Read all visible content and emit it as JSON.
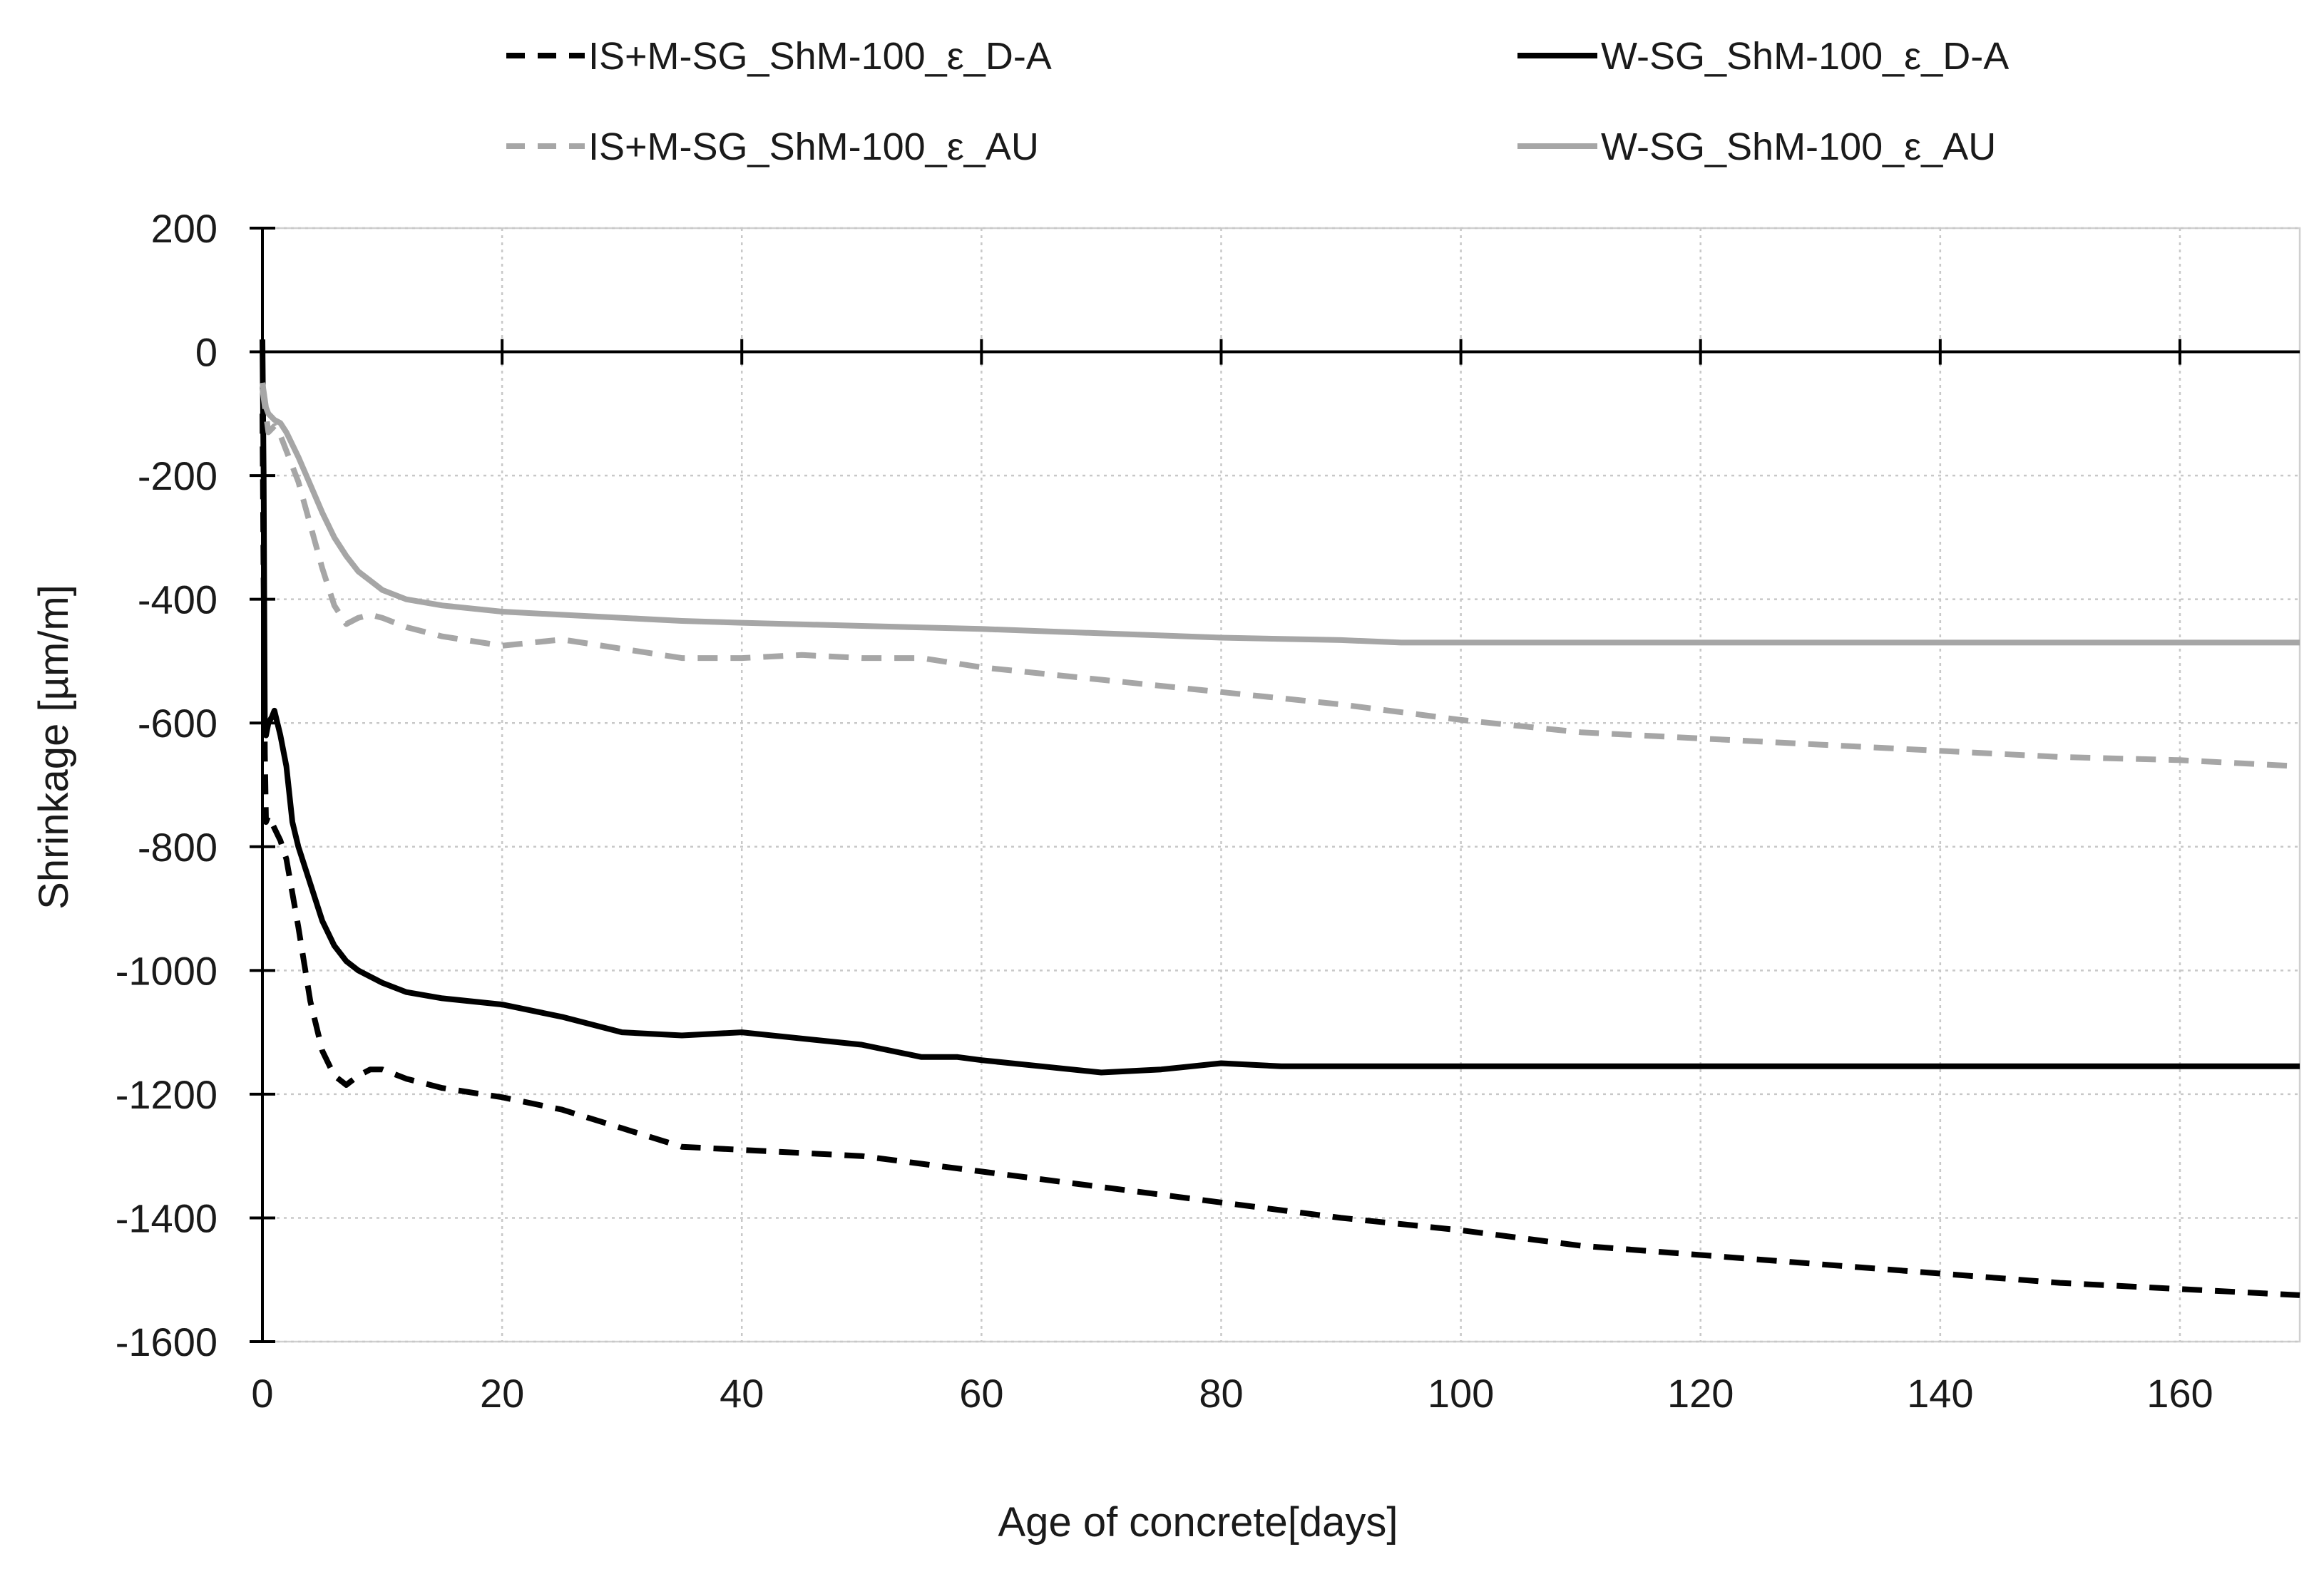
{
  "chart_data": {
    "type": "line",
    "title": "",
    "xlabel": "Age of concrete[days]",
    "ylabel": "Shrinkage [µm/m]",
    "xlim": [
      0,
      170
    ],
    "ylim": [
      -1600,
      200
    ],
    "xticks": [
      0,
      20,
      40,
      60,
      80,
      100,
      120,
      140,
      160
    ],
    "yticks": [
      200,
      0,
      -200,
      -400,
      -600,
      -800,
      -1000,
      -1200,
      -1400,
      -1600
    ],
    "xtick_labels": [
      "0",
      "20",
      "40",
      "60",
      "80",
      "100",
      "120",
      "140",
      "160"
    ],
    "ytick_labels": [
      "200",
      "0",
      "-200",
      "-400",
      "-600",
      "-800",
      "-1000",
      "-1200",
      "-1400",
      "-1600"
    ],
    "grid": true,
    "legend_position": "top",
    "series": [
      {
        "name": "IS+M-SG_ShM-100_ε_D-A",
        "color": "#000000",
        "dash": "dashed",
        "x": [
          0,
          0.2,
          0.3,
          0.5,
          1,
          1.5,
          2,
          3,
          4,
          5,
          6,
          7,
          8,
          9,
          10,
          12,
          15,
          20,
          25,
          30,
          35,
          40,
          50,
          60,
          70,
          80,
          90,
          100,
          110,
          120,
          130,
          140,
          150,
          160,
          170
        ],
        "y": [
          -100,
          -650,
          -760,
          -750,
          -770,
          -790,
          -820,
          -930,
          -1050,
          -1130,
          -1170,
          -1185,
          -1170,
          -1160,
          -1160,
          -1175,
          -1190,
          -1205,
          -1225,
          -1255,
          -1285,
          -1290,
          -1300,
          -1325,
          -1350,
          -1375,
          -1400,
          -1420,
          -1445,
          -1460,
          -1475,
          -1490,
          -1505,
          -1515,
          -1525
        ]
      },
      {
        "name": "W-SG_ShM-100_ε_D-A",
        "color": "#000000",
        "dash": "solid",
        "x": [
          0,
          0.1,
          0.2,
          0.3,
          0.5,
          0.8,
          1,
          1.5,
          2,
          2.5,
          3,
          4,
          5,
          6,
          7,
          8,
          10,
          12,
          15,
          20,
          25,
          30,
          35,
          40,
          45,
          50,
          55,
          58,
          60,
          65,
          70,
          75,
          80,
          85,
          90,
          100,
          110,
          120,
          140,
          170
        ],
        "y": [
          20,
          -200,
          -610,
          -620,
          -600,
          -590,
          -580,
          -620,
          -670,
          -760,
          -800,
          -860,
          -920,
          -960,
          -985,
          -1000,
          -1020,
          -1035,
          -1045,
          -1055,
          -1075,
          -1100,
          -1105,
          -1100,
          -1110,
          -1120,
          -1140,
          -1140,
          -1145,
          -1155,
          -1165,
          -1160,
          -1150,
          -1155,
          -1155,
          -1155,
          -1155,
          -1155,
          -1155,
          -1155
        ]
      },
      {
        "name": "IS+M-SG_ShM-100_ε_AU",
        "color": "#a6a6a6",
        "dash": "dashed",
        "x": [
          0,
          0.5,
          1,
          1.5,
          2,
          3,
          4,
          5,
          6,
          7,
          8,
          9,
          10,
          12,
          15,
          20,
          25,
          30,
          35,
          40,
          45,
          50,
          55,
          60,
          70,
          80,
          90,
          100,
          110,
          120,
          130,
          140,
          150,
          160,
          170
        ],
        "y": [
          -60,
          -130,
          -120,
          -135,
          -160,
          -210,
          -280,
          -350,
          -410,
          -440,
          -430,
          -425,
          -430,
          -445,
          -460,
          -475,
          -465,
          -480,
          -495,
          -495,
          -490,
          -495,
          -495,
          -510,
          -530,
          -550,
          -570,
          -595,
          -615,
          -625,
          -635,
          -645,
          -655,
          -660,
          -670
        ]
      },
      {
        "name": "W-SG_ShM-100_ε_AU",
        "color": "#a6a6a6",
        "dash": "solid",
        "x": [
          0,
          0.3,
          0.5,
          1,
          1.5,
          2,
          3,
          4,
          5,
          6,
          7,
          8,
          9,
          10,
          12,
          15,
          20,
          25,
          30,
          35,
          40,
          50,
          60,
          70,
          80,
          90,
          95,
          100,
          110,
          120,
          140,
          170
        ],
        "y": [
          -50,
          -90,
          -100,
          -110,
          -115,
          -130,
          -170,
          -215,
          -260,
          -300,
          -330,
          -355,
          -370,
          -385,
          -400,
          -410,
          -420,
          -425,
          -430,
          -435,
          -438,
          -443,
          -448,
          -455,
          -462,
          -466,
          -470,
          -470,
          -470,
          -470,
          -470,
          -470
        ]
      }
    ]
  }
}
